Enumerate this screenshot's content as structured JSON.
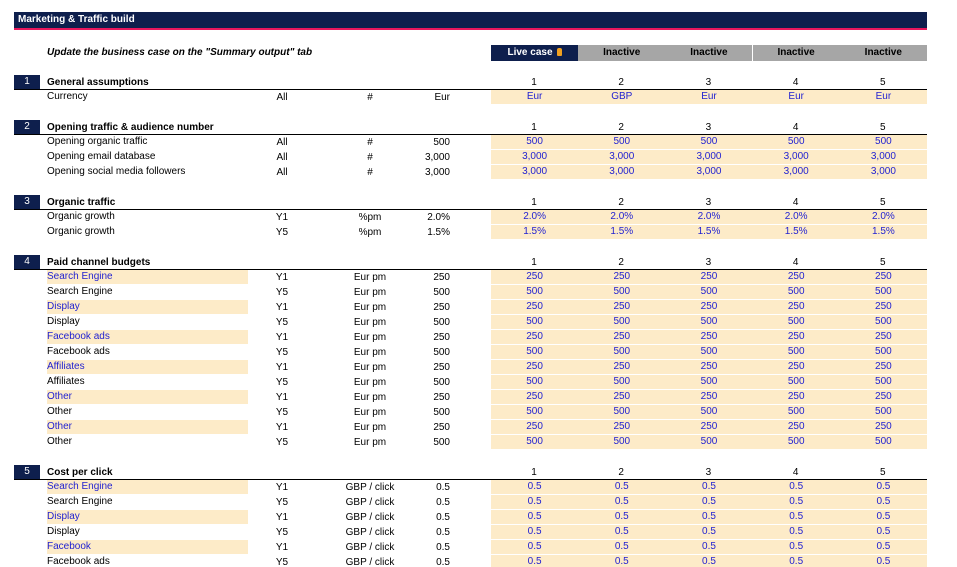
{
  "title": "Marketing & Traffic build",
  "instruction": "Update the business case on the \"Summary output\" tab",
  "case_headers": [
    "Live case",
    "Inactive",
    "Inactive",
    "Inactive",
    "Inactive"
  ],
  "sections": [
    {
      "number": 1,
      "title": "General assumptions",
      "case_numbers": [
        1,
        2,
        3,
        4,
        5
      ],
      "rows": [
        {
          "label": "Currency",
          "scope": "All",
          "unit": "#",
          "base": "Eur",
          "cases": [
            "Eur",
            "GBP",
            "Eur",
            "Eur",
            "Eur"
          ],
          "input_label": false
        }
      ]
    },
    {
      "number": 2,
      "title": "Opening traffic & audience number",
      "case_numbers": [
        1,
        2,
        3,
        4,
        5
      ],
      "rows": [
        {
          "label": "Opening organic traffic",
          "scope": "All",
          "unit": "#",
          "base": "500",
          "cases": [
            "500",
            "500",
            "500",
            "500",
            "500"
          ],
          "input_label": false
        },
        {
          "label": "Opening email database",
          "scope": "All",
          "unit": "#",
          "base": "3,000",
          "cases": [
            "3,000",
            "3,000",
            "3,000",
            "3,000",
            "3,000"
          ],
          "input_label": false
        },
        {
          "label": "Opening social media followers",
          "scope": "All",
          "unit": "#",
          "base": "3,000",
          "cases": [
            "3,000",
            "3,000",
            "3,000",
            "3,000",
            "3,000"
          ],
          "input_label": false
        }
      ]
    },
    {
      "number": 3,
      "title": "Organic traffic",
      "case_numbers": [
        1,
        2,
        3,
        4,
        5
      ],
      "rows": [
        {
          "label": "Organic growth",
          "scope": "Y1",
          "unit": "%pm",
          "base": "2.0%",
          "cases": [
            "2.0%",
            "2.0%",
            "2.0%",
            "2.0%",
            "2.0%"
          ],
          "input_label": false
        },
        {
          "label": "Organic growth",
          "scope": "Y5",
          "unit": "%pm",
          "base": "1.5%",
          "cases": [
            "1.5%",
            "1.5%",
            "1.5%",
            "1.5%",
            "1.5%"
          ],
          "input_label": false
        }
      ]
    },
    {
      "number": 4,
      "title": "Paid channel budgets",
      "case_numbers": [
        1,
        2,
        3,
        4,
        5
      ],
      "rows": [
        {
          "label": "Search Engine",
          "scope": "Y1",
          "unit": "Eur pm",
          "base": "250",
          "cases": [
            "250",
            "250",
            "250",
            "250",
            "250"
          ],
          "input_label": true
        },
        {
          "label": "Search Engine",
          "scope": "Y5",
          "unit": "Eur pm",
          "base": "500",
          "cases": [
            "500",
            "500",
            "500",
            "500",
            "500"
          ],
          "input_label": false
        },
        {
          "label": "Display",
          "scope": "Y1",
          "unit": "Eur pm",
          "base": "250",
          "cases": [
            "250",
            "250",
            "250",
            "250",
            "250"
          ],
          "input_label": true
        },
        {
          "label": "Display",
          "scope": "Y5",
          "unit": "Eur pm",
          "base": "500",
          "cases": [
            "500",
            "500",
            "500",
            "500",
            "500"
          ],
          "input_label": false
        },
        {
          "label": "Facebook ads",
          "scope": "Y1",
          "unit": "Eur pm",
          "base": "250",
          "cases": [
            "250",
            "250",
            "250",
            "250",
            "250"
          ],
          "input_label": true
        },
        {
          "label": "Facebook ads",
          "scope": "Y5",
          "unit": "Eur pm",
          "base": "500",
          "cases": [
            "500",
            "500",
            "500",
            "500",
            "500"
          ],
          "input_label": false
        },
        {
          "label": "Affiliates",
          "scope": "Y1",
          "unit": "Eur pm",
          "base": "250",
          "cases": [
            "250",
            "250",
            "250",
            "250",
            "250"
          ],
          "input_label": true
        },
        {
          "label": "Affiliates",
          "scope": "Y5",
          "unit": "Eur pm",
          "base": "500",
          "cases": [
            "500",
            "500",
            "500",
            "500",
            "500"
          ],
          "input_label": false
        },
        {
          "label": "Other",
          "scope": "Y1",
          "unit": "Eur pm",
          "base": "250",
          "cases": [
            "250",
            "250",
            "250",
            "250",
            "250"
          ],
          "input_label": true
        },
        {
          "label": "Other",
          "scope": "Y5",
          "unit": "Eur pm",
          "base": "500",
          "cases": [
            "500",
            "500",
            "500",
            "500",
            "500"
          ],
          "input_label": false
        },
        {
          "label": "Other",
          "scope": "Y1",
          "unit": "Eur pm",
          "base": "250",
          "cases": [
            "250",
            "250",
            "250",
            "250",
            "250"
          ],
          "input_label": true
        },
        {
          "label": "Other",
          "scope": "Y5",
          "unit": "Eur pm",
          "base": "500",
          "cases": [
            "500",
            "500",
            "500",
            "500",
            "500"
          ],
          "input_label": false
        }
      ]
    },
    {
      "number": 5,
      "title": "Cost per click",
      "case_numbers": [
        1,
        2,
        3,
        4,
        5
      ],
      "rows": [
        {
          "label": "Search Engine",
          "scope": "Y1",
          "unit": "GBP / click",
          "base": "0.5",
          "cases": [
            "0.5",
            "0.5",
            "0.5",
            "0.5",
            "0.5"
          ],
          "input_label": true
        },
        {
          "label": "Search Engine",
          "scope": "Y5",
          "unit": "GBP / click",
          "base": "0.5",
          "cases": [
            "0.5",
            "0.5",
            "0.5",
            "0.5",
            "0.5"
          ],
          "input_label": false
        },
        {
          "label": "Display",
          "scope": "Y1",
          "unit": "GBP / click",
          "base": "0.5",
          "cases": [
            "0.5",
            "0.5",
            "0.5",
            "0.5",
            "0.5"
          ],
          "input_label": true
        },
        {
          "label": "Display",
          "scope": "Y5",
          "unit": "GBP / click",
          "base": "0.5",
          "cases": [
            "0.5",
            "0.5",
            "0.5",
            "0.5",
            "0.5"
          ],
          "input_label": false
        },
        {
          "label": "Facebook",
          "scope": "Y1",
          "unit": "GBP / click",
          "base": "0.5",
          "cases": [
            "0.5",
            "0.5",
            "0.5",
            "0.5",
            "0.5"
          ],
          "input_label": true
        },
        {
          "label": "Facebook ads",
          "scope": "Y5",
          "unit": "GBP / click",
          "base": "0.5",
          "cases": [
            "0.5",
            "0.5",
            "0.5",
            "0.5",
            "0.5"
          ],
          "input_label": false
        }
      ]
    }
  ]
}
